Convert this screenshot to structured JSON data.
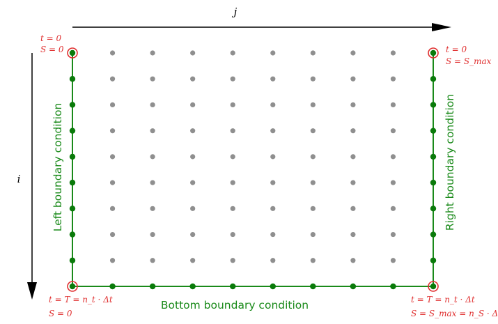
{
  "axes": {
    "column_index_label": "j",
    "row_index_label": "i"
  },
  "grid": {
    "columns": 10,
    "rows": 10
  },
  "colors": {
    "boundary": "#1a8a1a",
    "boundary_node": "#0a7a0a",
    "interior_node": "#8f8f8f",
    "corner_marker": "#e03030",
    "corner_text": "#e03030",
    "axis": "#000000"
  },
  "boundary_labels": {
    "left": "Left boundary condition",
    "right": "Right boundary condition",
    "bottom": "Bottom boundary condition"
  },
  "corners": {
    "top_left": {
      "line1": "t = 0",
      "line2": "S = 0"
    },
    "top_right": {
      "line1": "t = 0",
      "line2": "S = S_max"
    },
    "bottom_left": {
      "line1": "t = T = n_t · Δt",
      "line2": "S = 0"
    },
    "bottom_right": {
      "line1": "t = T = n_t · Δt",
      "line2": "S = S_max = n_S · ΔS"
    }
  }
}
